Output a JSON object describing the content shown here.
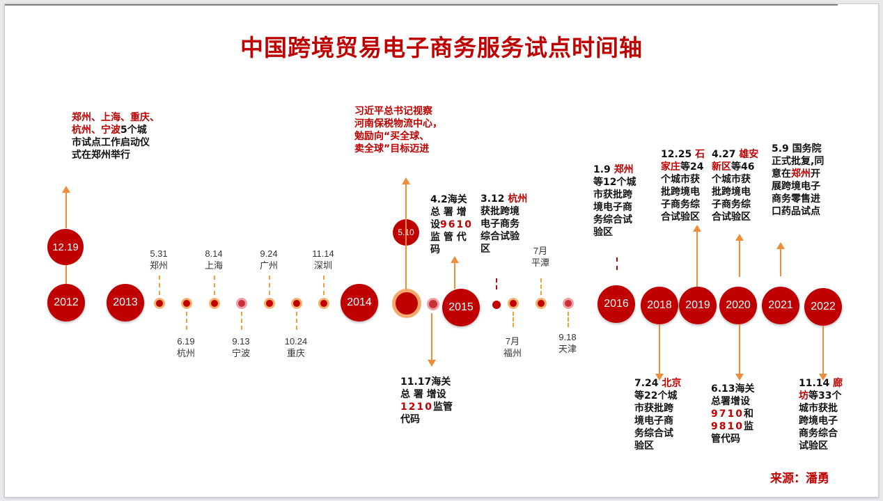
{
  "title": "中国跨境贸易电子商务服务试点时间轴",
  "source": "来源：潘勇",
  "years": [
    "2012",
    "2013",
    "2014",
    "2015",
    "2016",
    "2018",
    "2019",
    "2020",
    "2021",
    "2022"
  ],
  "milestone_circles": [
    "12.19",
    "5.10"
  ],
  "dates": {
    "d_531": [
      "5.31",
      "郑州"
    ],
    "d_619": [
      "6.19",
      "杭州"
    ],
    "d_814": [
      "8.14",
      "上海"
    ],
    "d_913": [
      "9.13",
      "宁波"
    ],
    "d_924": [
      "9.24",
      "广州"
    ],
    "d_1024": [
      "10.24",
      "重庆"
    ],
    "d_1114": [
      "11.14",
      "深圳"
    ],
    "d_fz": [
      "7月",
      "福州"
    ],
    "d_pt": [
      "7月",
      "平潭"
    ],
    "d_tj": [
      "9.18",
      "天津"
    ]
  },
  "notes": {
    "n2012": [
      "郑州、上海、重庆、",
      "杭州、宁波",
      "5个城",
      "市试点工作启动仪",
      "式在郑州举行"
    ],
    "n2014": [
      "习近平总书记视察",
      "河南保税物流中心，",
      "勉励向“买全球、",
      "卖全球”目标迈进"
    ],
    "n9610": [
      "4.2海关",
      "总 署 增",
      "设",
      "9610",
      "监 管 代",
      "码"
    ],
    "n1210": [
      "11.17海关",
      "总 署 增设",
      "1210",
      "监管",
      "代码"
    ],
    "nhz": [
      "3.12 ",
      "杭州",
      "获批跨境",
      "电子商务",
      "综合试验",
      "区"
    ],
    "n2016": [
      "1.9 ",
      "郑州",
      "等12个城",
      "市获批跨",
      "境电子商",
      "务综合试",
      "验区"
    ],
    "nbj": [
      "7.24 ",
      "北京",
      "等22个城",
      "市获批跨",
      "境电子商",
      "务综合试",
      "验区"
    ],
    "nsjz": [
      "12.25 ",
      "石",
      "家庄",
      "等24",
      "个城市获",
      "批跨境电",
      "子商务综",
      "合试验区"
    ],
    "nxa": [
      "4.27 ",
      "雄安",
      "新区",
      "等46",
      "个城市获",
      "批跨境电",
      "子商务综",
      "合试验区"
    ],
    "n9710": [
      "6.13海关",
      "总署增设",
      "9710",
      "和",
      "9810",
      "监",
      "管代码"
    ],
    "n2021": [
      "5.9 国务院",
      "正式批复,同",
      "意在",
      "郑州",
      "开",
      "展跨境电子",
      "商务零售进",
      "口药品试点"
    ],
    "nlf": [
      "11.14 ",
      "廊",
      "坊",
      "等33个",
      "城市获批",
      "跨境电子",
      "商务综合",
      "试验区"
    ]
  }
}
